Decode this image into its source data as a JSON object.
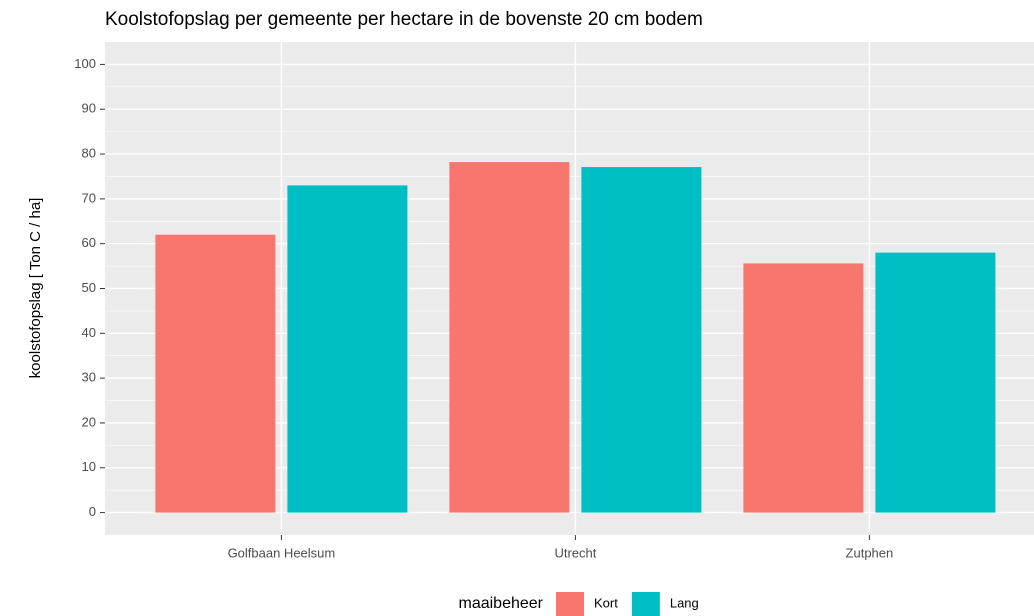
{
  "chart_data": {
    "type": "bar",
    "title": "Koolstofopslag per gemeente per hectare in de bovenste 20 cm bodem",
    "y_label": "koolstofopslag [ Ton C / ha]",
    "legend_title": "maaibeheer",
    "legend_position": "bottom",
    "categories": [
      "Golfbaan Heelsum",
      "Utrecht",
      "Zutphen"
    ],
    "series": [
      {
        "name": "Kort",
        "color": "#f8766d",
        "values": [
          62,
          78.2,
          55.6
        ]
      },
      {
        "name": "Lang",
        "color": "#00bfc4",
        "values": [
          73,
          77.1,
          58
        ]
      }
    ],
    "ylim": [
      -5,
      105
    ],
    "yticks": [
      0,
      10,
      20,
      30,
      40,
      50,
      60,
      70,
      80,
      90,
      100
    ],
    "yminor": [
      5,
      15,
      25,
      35,
      45,
      55,
      65,
      75,
      85,
      95
    ],
    "grid": true
  }
}
